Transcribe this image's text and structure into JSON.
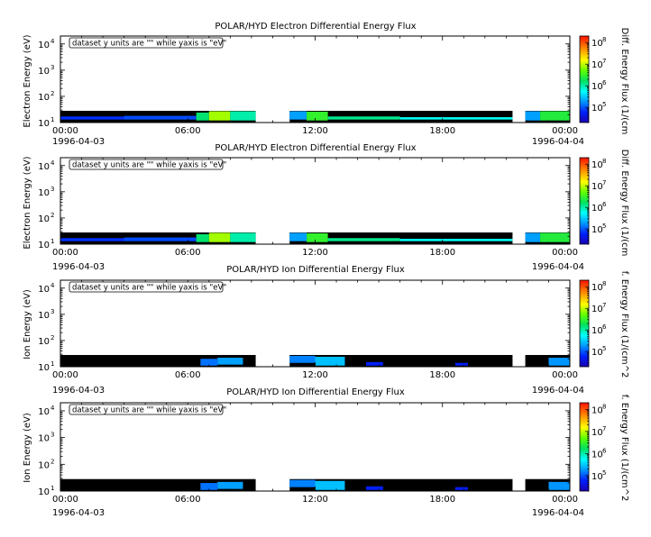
{
  "panels": [
    {
      "title": "POLAR/HYD  Electron Differential Energy Flux",
      "ylabel": "Electron Energy (eV)",
      "colorbar_label": "Diff. Energy Flux (1/(cm",
      "note": "dataset y units are \"\" while yaxis is \"eV\"",
      "start_date": "1996-04-03",
      "end_date": "1996-04-04"
    },
    {
      "title": "POLAR/HYD  Electron Differential Energy Flux",
      "ylabel": "Electron Energy (eV)",
      "colorbar_label": "Diff. Energy Flux (1/(cm",
      "note": "dataset y units are \"\" while yaxis is \"eV\"",
      "start_date": "1996-04-03",
      "end_date": "1996-04-04"
    },
    {
      "title": "POLAR/HYD  Ion Differential Energy Flux",
      "ylabel": "Ion Energy (eV)",
      "colorbar_label": "f. Energy Flux (1/(cm^2",
      "note": "dataset y units are \"\" while yaxis is \"eV\"",
      "start_date": "1996-04-03",
      "end_date": "1996-04-04"
    },
    {
      "title": "POLAR/HYD  Ion Differential Energy Flux",
      "ylabel": "Ion Energy (eV)",
      "colorbar_label": "f. Energy Flux (1/(cm^2",
      "note": "dataset y units are \"\" while yaxis is \"eV\"",
      "start_date": "1996-04-03",
      "end_date": "1996-04-04"
    }
  ],
  "chart_data": [
    {
      "type": "heatmap",
      "title": "POLAR/HYD  Electron Differential Energy Flux",
      "ylabel": "Electron Energy (eV)",
      "y_scale": "log",
      "ylim": [
        10,
        20000
      ],
      "y_ticks": [
        {
          "base": "10",
          "exp": "1",
          "v": 10
        },
        {
          "base": "10",
          "exp": "2",
          "v": 100
        },
        {
          "base": "10",
          "exp": "3",
          "v": 1000
        },
        {
          "base": "10",
          "exp": "4",
          "v": 10000
        }
      ],
      "x_ticks": [
        {
          "label": "00:00",
          "h": 0
        },
        {
          "label": "06:00",
          "h": 6
        },
        {
          "label": "12:00",
          "h": 12
        },
        {
          "label": "18:00",
          "h": 18
        },
        {
          "label": "00:00",
          "h": 24
        }
      ],
      "xlim_hours": [
        0,
        24
      ],
      "colorbar": {
        "scale": "log",
        "range": [
          20000,
          200000000
        ],
        "ticks": [
          {
            "base": "10",
            "exp": "5",
            "v": 100000
          },
          {
            "base": "10",
            "exp": "6",
            "v": 1000000
          },
          {
            "base": "10",
            "exp": "7",
            "v": 10000000
          },
          {
            "base": "10",
            "exp": "8",
            "v": 100000000
          }
        ]
      },
      "data_gaps_hours": [
        [
          9.2,
          10.8
        ],
        [
          21.3,
          21.9
        ]
      ],
      "energy_band_top_eV": 28,
      "segments": [
        {
          "t0": 0.0,
          "t1": 3.0,
          "e0": 13,
          "e1": 17,
          "flux": 70000
        },
        {
          "t0": 3.0,
          "t1": 6.4,
          "e0": 13,
          "e1": 18,
          "flux": 90000
        },
        {
          "t0": 6.4,
          "t1": 7.0,
          "e0": 12,
          "e1": 24,
          "flux": 1500000
        },
        {
          "t0": 7.0,
          "t1": 8.0,
          "e0": 12,
          "e1": 27,
          "flux": 8000000
        },
        {
          "t0": 8.0,
          "t1": 9.2,
          "e0": 12,
          "e1": 27,
          "flux": 1000000
        },
        {
          "t0": 10.8,
          "t1": 11.6,
          "e0": 13,
          "e1": 27,
          "flux": 200000
        },
        {
          "t0": 11.6,
          "t1": 12.6,
          "e0": 12,
          "e1": 26,
          "flux": 3000000
        },
        {
          "t0": 12.6,
          "t1": 16.0,
          "e0": 13,
          "e1": 17,
          "flux": 1200000
        },
        {
          "t0": 16.0,
          "t1": 21.3,
          "e0": 13,
          "e1": 16,
          "flux": 600000
        },
        {
          "t0": 21.9,
          "t1": 22.6,
          "e0": 12,
          "e1": 27,
          "flux": 200000
        },
        {
          "t0": 22.6,
          "t1": 24.0,
          "e0": 12,
          "e1": 27,
          "flux": 2500000
        }
      ]
    },
    {
      "type": "heatmap",
      "title": "POLAR/HYD  Electron Differential Energy Flux",
      "ylabel": "Electron Energy (eV)",
      "y_scale": "log",
      "ylim": [
        10,
        20000
      ],
      "y_ticks": [
        {
          "base": "10",
          "exp": "1",
          "v": 10
        },
        {
          "base": "10",
          "exp": "2",
          "v": 100
        },
        {
          "base": "10",
          "exp": "3",
          "v": 1000
        },
        {
          "base": "10",
          "exp": "4",
          "v": 10000
        }
      ],
      "x_ticks": [
        {
          "label": "00:00",
          "h": 0
        },
        {
          "label": "06:00",
          "h": 6
        },
        {
          "label": "12:00",
          "h": 12
        },
        {
          "label": "18:00",
          "h": 18
        },
        {
          "label": "00:00",
          "h": 24
        }
      ],
      "xlim_hours": [
        0,
        24
      ],
      "colorbar": {
        "scale": "log",
        "range": [
          20000,
          200000000
        ],
        "ticks": [
          {
            "base": "10",
            "exp": "5",
            "v": 100000
          },
          {
            "base": "10",
            "exp": "6",
            "v": 1000000
          },
          {
            "base": "10",
            "exp": "7",
            "v": 10000000
          },
          {
            "base": "10",
            "exp": "8",
            "v": 100000000
          }
        ]
      },
      "data_gaps_hours": [
        [
          9.2,
          10.8
        ],
        [
          21.3,
          21.9
        ]
      ],
      "energy_band_top_eV": 28,
      "segments": [
        {
          "t0": 0.0,
          "t1": 3.0,
          "e0": 13,
          "e1": 17,
          "flux": 70000
        },
        {
          "t0": 3.0,
          "t1": 6.4,
          "e0": 13,
          "e1": 18,
          "flux": 90000
        },
        {
          "t0": 6.4,
          "t1": 7.0,
          "e0": 12,
          "e1": 24,
          "flux": 1500000
        },
        {
          "t0": 7.0,
          "t1": 8.0,
          "e0": 12,
          "e1": 27,
          "flux": 8000000
        },
        {
          "t0": 8.0,
          "t1": 9.2,
          "e0": 12,
          "e1": 27,
          "flux": 1000000
        },
        {
          "t0": 10.8,
          "t1": 11.6,
          "e0": 13,
          "e1": 27,
          "flux": 200000
        },
        {
          "t0": 11.6,
          "t1": 12.6,
          "e0": 12,
          "e1": 26,
          "flux": 3000000
        },
        {
          "t0": 12.6,
          "t1": 16.0,
          "e0": 13,
          "e1": 17,
          "flux": 1200000
        },
        {
          "t0": 16.0,
          "t1": 21.3,
          "e0": 13,
          "e1": 16,
          "flux": 600000
        },
        {
          "t0": 21.9,
          "t1": 22.6,
          "e0": 12,
          "e1": 27,
          "flux": 200000
        },
        {
          "t0": 22.6,
          "t1": 24.0,
          "e0": 12,
          "e1": 27,
          "flux": 2500000
        }
      ]
    },
    {
      "type": "heatmap",
      "title": "POLAR/HYD  Ion Differential Energy Flux",
      "ylabel": "Ion Energy (eV)",
      "y_scale": "log",
      "ylim": [
        10,
        20000
      ],
      "y_ticks": [
        {
          "base": "10",
          "exp": "1",
          "v": 10
        },
        {
          "base": "10",
          "exp": "2",
          "v": 100
        },
        {
          "base": "10",
          "exp": "3",
          "v": 1000
        },
        {
          "base": "10",
          "exp": "4",
          "v": 10000
        }
      ],
      "x_ticks": [
        {
          "label": "00:00",
          "h": 0
        },
        {
          "label": "06:00",
          "h": 6
        },
        {
          "label": "12:00",
          "h": 12
        },
        {
          "label": "18:00",
          "h": 18
        },
        {
          "label": "00:00",
          "h": 24
        }
      ],
      "xlim_hours": [
        0,
        24
      ],
      "colorbar": {
        "scale": "log",
        "range": [
          20000,
          200000000
        ],
        "ticks": [
          {
            "base": "10",
            "exp": "5",
            "v": 100000
          },
          {
            "base": "10",
            "exp": "6",
            "v": 1000000
          },
          {
            "base": "10",
            "exp": "7",
            "v": 10000000
          },
          {
            "base": "10",
            "exp": "8",
            "v": 100000000
          }
        ]
      },
      "data_gaps_hours": [
        [
          9.2,
          10.8
        ],
        [
          21.3,
          21.9
        ]
      ],
      "energy_band_top_eV": 28,
      "segments": [
        {
          "t0": 6.6,
          "t1": 7.4,
          "e0": 11,
          "e1": 20,
          "flux": 130000
        },
        {
          "t0": 7.4,
          "t1": 8.6,
          "e0": 12,
          "e1": 22,
          "flux": 200000
        },
        {
          "t0": 10.8,
          "t1": 12.0,
          "e0": 14,
          "e1": 26,
          "flux": 150000
        },
        {
          "t0": 12.0,
          "t1": 13.4,
          "e0": 11,
          "e1": 24,
          "flux": 280000
        },
        {
          "t0": 14.4,
          "t1": 15.2,
          "e0": 11,
          "e1": 15,
          "flux": 60000
        },
        {
          "t0": 18.6,
          "t1": 19.2,
          "e0": 11,
          "e1": 14,
          "flux": 55000
        },
        {
          "t0": 23.0,
          "t1": 24.0,
          "e0": 11,
          "e1": 22,
          "flux": 180000
        }
      ]
    },
    {
      "type": "heatmap",
      "title": "POLAR/HYD  Ion Differential Energy Flux",
      "ylabel": "Ion Energy (eV)",
      "y_scale": "log",
      "ylim": [
        10,
        20000
      ],
      "y_ticks": [
        {
          "base": "10",
          "exp": "1",
          "v": 10
        },
        {
          "base": "10",
          "exp": "2",
          "v": 100
        },
        {
          "base": "10",
          "exp": "3",
          "v": 1000
        },
        {
          "base": "10",
          "exp": "4",
          "v": 10000
        }
      ],
      "x_ticks": [
        {
          "label": "00:00",
          "h": 0
        },
        {
          "label": "06:00",
          "h": 6
        },
        {
          "label": "12:00",
          "h": 12
        },
        {
          "label": "18:00",
          "h": 18
        },
        {
          "label": "00:00",
          "h": 24
        }
      ],
      "xlim_hours": [
        0,
        24
      ],
      "colorbar": {
        "scale": "log",
        "range": [
          20000,
          200000000
        ],
        "ticks": [
          {
            "base": "10",
            "exp": "5",
            "v": 100000
          },
          {
            "base": "10",
            "exp": "6",
            "v": 1000000
          },
          {
            "base": "10",
            "exp": "7",
            "v": 10000000
          },
          {
            "base": "10",
            "exp": "8",
            "v": 100000000
          }
        ]
      },
      "data_gaps_hours": [
        [
          9.2,
          10.8
        ],
        [
          21.3,
          21.9
        ]
      ],
      "energy_band_top_eV": 28,
      "segments": [
        {
          "t0": 6.6,
          "t1": 7.4,
          "e0": 11,
          "e1": 20,
          "flux": 130000
        },
        {
          "t0": 7.4,
          "t1": 8.6,
          "e0": 12,
          "e1": 22,
          "flux": 200000
        },
        {
          "t0": 10.8,
          "t1": 12.0,
          "e0": 14,
          "e1": 26,
          "flux": 150000
        },
        {
          "t0": 12.0,
          "t1": 13.4,
          "e0": 11,
          "e1": 24,
          "flux": 280000
        },
        {
          "t0": 14.4,
          "t1": 15.2,
          "e0": 11,
          "e1": 15,
          "flux": 60000
        },
        {
          "t0": 18.6,
          "t1": 19.2,
          "e0": 11,
          "e1": 14,
          "flux": 55000
        },
        {
          "t0": 23.0,
          "t1": 24.0,
          "e0": 11,
          "e1": 22,
          "flux": 180000
        }
      ]
    }
  ]
}
